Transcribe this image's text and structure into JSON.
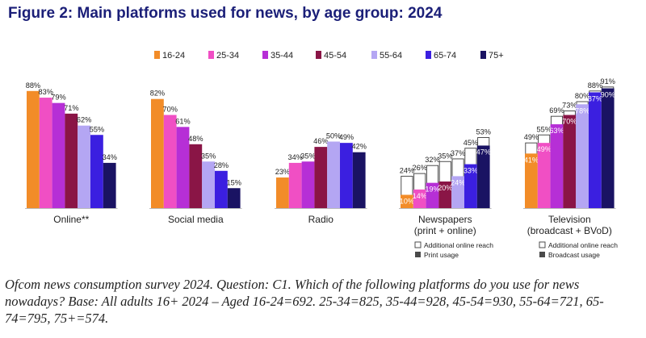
{
  "title": "Figure 2: Main platforms used for news, by age group: 2024",
  "footnote": "Ofcom news consumption survey 2024. Question: C1. Which of the following platforms do you use for news nowadays? Base: All adults 16+ 2024 – Aged 16-24=692. 25-34=825, 35-44=928, 45-54=930, 55-64=721, 65-74=795, 75+=574.",
  "chart_data": {
    "type": "bar",
    "title": "Main platforms used for news, by age group: 2024",
    "ylim": [
      0,
      100
    ],
    "unit": "%",
    "series": [
      {
        "name": "16-24",
        "color": "#f28c28"
      },
      {
        "name": "25-34",
        "color": "#f04fc4"
      },
      {
        "name": "35-44",
        "color": "#b62fd6"
      },
      {
        "name": "45-54",
        "color": "#8a1546"
      },
      {
        "name": "55-64",
        "color": "#b4a6f3"
      },
      {
        "name": "65-74",
        "color": "#3b1fe0"
      },
      {
        "name": "75+",
        "color": "#1a1363"
      }
    ],
    "groups": [
      {
        "label": "Online**",
        "sublabel": "",
        "values": [
          88,
          83,
          79,
          71,
          62,
          55,
          34
        ]
      },
      {
        "label": "Social media",
        "sublabel": "",
        "values": [
          82,
          70,
          61,
          48,
          35,
          28,
          15
        ]
      },
      {
        "label": "Radio",
        "sublabel": "",
        "values": [
          23,
          34,
          35,
          46,
          50,
          49,
          42
        ]
      },
      {
        "label": "Newspapers",
        "sublabel": "(print + online)",
        "values": [
          24,
          26,
          32,
          35,
          37,
          45,
          53
        ],
        "inner_values": [
          10,
          14,
          19,
          20,
          24,
          33,
          47
        ],
        "legend": [
          "Additional online reach",
          "Print usage"
        ]
      },
      {
        "label": "Television",
        "sublabel": "(broadcast + BVoD)",
        "values": [
          49,
          55,
          69,
          73,
          80,
          88,
          91
        ],
        "inner_values": [
          41,
          49,
          63,
          70,
          78,
          87,
          90
        ],
        "legend": [
          "Additional online reach",
          "Broadcast usage"
        ]
      }
    ]
  }
}
